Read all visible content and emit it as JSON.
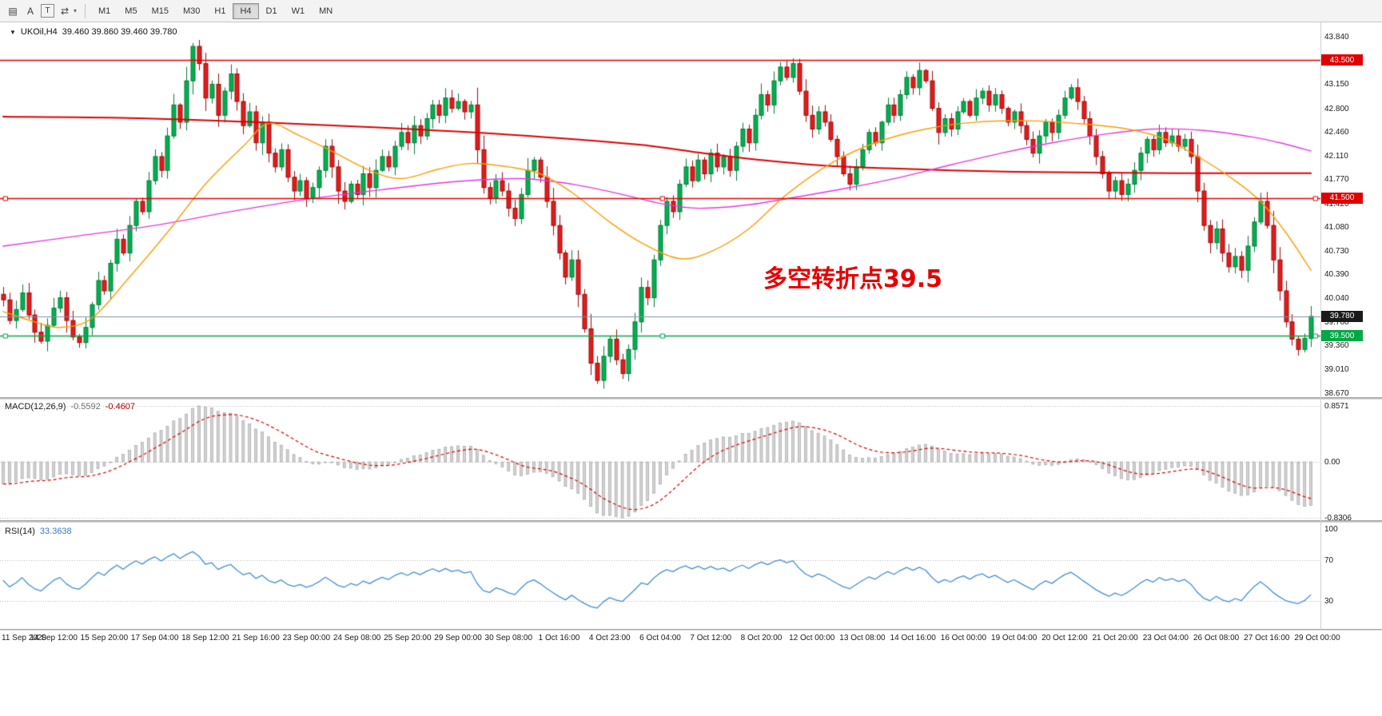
{
  "toolbar": {
    "tools": [
      {
        "name": "chart-layout",
        "glyph": "▤",
        "boxed": false,
        "caret": false
      },
      {
        "name": "text-annotation",
        "glyph": "A",
        "boxed": false,
        "caret": false
      },
      {
        "name": "text-label",
        "glyph": "T",
        "boxed": true,
        "caret": false
      },
      {
        "name": "draw-tools",
        "glyph": "⇄",
        "boxed": false,
        "caret": true
      }
    ],
    "timeframes": [
      "M1",
      "M5",
      "M15",
      "M30",
      "H1",
      "H4",
      "D1",
      "W1",
      "MN"
    ],
    "active_timeframe": "H4"
  },
  "main_chart": {
    "symbol_period": "UKOil,H4",
    "ohlc_text": "39.460 39.860 39.460 39.780",
    "annotation": {
      "text": "多空转折点39.5",
      "color": "#e60000"
    },
    "up_color": "#00b050",
    "up_border": "#007c34",
    "down_color": "#e41b1b",
    "down_border": "#9c0b0b",
    "y_ticks": [
      "43.840",
      "43.150",
      "42.800",
      "42.460",
      "42.110",
      "41.770",
      "41.420",
      "41.080",
      "40.730",
      "40.390",
      "40.040",
      "39.700",
      "39.360",
      "39.010",
      "38.670"
    ],
    "levels": [
      {
        "name": "resistance-line-43500",
        "label": "43.500",
        "price": 43.5,
        "line_color": "#e00000",
        "box_color": "#e00000",
        "handles": false
      },
      {
        "name": "hline-41500",
        "label": "41.500",
        "price": 41.5,
        "line_color": "#e00000",
        "box_color": "#e00000",
        "handles": true
      },
      {
        "name": "support-line-39500",
        "label": "39.500",
        "price": 39.5,
        "line_color": "#00a846",
        "box_color": "#00a846",
        "handles": true
      },
      {
        "name": "bid-price-line",
        "label": "39.780",
        "price": 39.78,
        "line_color": "#7a93a8",
        "box_color": "#1a1a1a",
        "handles": false
      }
    ],
    "moving_averages": [
      {
        "name": "ma-slow",
        "color": "#dd0000",
        "width": 2,
        "anchors": [
          [
            0,
            42.68
          ],
          [
            20,
            42.66
          ],
          [
            40,
            42.6
          ],
          [
            60,
            42.52
          ],
          [
            80,
            42.42
          ],
          [
            100,
            42.28
          ],
          [
            110,
            42.16
          ],
          [
            120,
            42.05
          ],
          [
            130,
            41.97
          ],
          [
            140,
            41.93
          ],
          [
            150,
            41.9
          ],
          [
            160,
            41.88
          ],
          [
            170,
            41.87
          ],
          [
            185,
            41.86
          ],
          [
            207,
            41.86
          ]
        ]
      },
      {
        "name": "ma-medium",
        "color": "#e437e4",
        "width": 1.4,
        "anchors": [
          [
            0,
            40.8
          ],
          [
            12,
            40.95
          ],
          [
            24,
            41.1
          ],
          [
            36,
            41.3
          ],
          [
            48,
            41.48
          ],
          [
            60,
            41.62
          ],
          [
            72,
            41.74
          ],
          [
            82,
            41.78
          ],
          [
            90,
            41.7
          ],
          [
            98,
            41.55
          ],
          [
            104,
            41.42
          ],
          [
            110,
            41.35
          ],
          [
            118,
            41.4
          ],
          [
            126,
            41.52
          ],
          [
            134,
            41.65
          ],
          [
            142,
            41.8
          ],
          [
            150,
            41.98
          ],
          [
            158,
            42.15
          ],
          [
            166,
            42.3
          ],
          [
            174,
            42.42
          ],
          [
            182,
            42.5
          ],
          [
            190,
            42.48
          ],
          [
            198,
            42.38
          ],
          [
            203,
            42.28
          ],
          [
            207,
            42.18
          ]
        ]
      },
      {
        "name": "ma-fast",
        "color": "#ff9c00",
        "width": 1.4,
        "anchors": [
          [
            0,
            39.85
          ],
          [
            5,
            39.7
          ],
          [
            9,
            39.62
          ],
          [
            14,
            39.75
          ],
          [
            20,
            40.35
          ],
          [
            26,
            41.0
          ],
          [
            32,
            41.7
          ],
          [
            38,
            42.25
          ],
          [
            42,
            42.58
          ],
          [
            47,
            42.4
          ],
          [
            52,
            42.18
          ],
          [
            58,
            41.9
          ],
          [
            63,
            41.78
          ],
          [
            69,
            41.92
          ],
          [
            74,
            42.0
          ],
          [
            80,
            41.95
          ],
          [
            85,
            41.85
          ],
          [
            90,
            41.58
          ],
          [
            96,
            41.15
          ],
          [
            101,
            40.85
          ],
          [
            107,
            40.62
          ],
          [
            112,
            40.72
          ],
          [
            118,
            41.05
          ],
          [
            124,
            41.55
          ],
          [
            131,
            42.0
          ],
          [
            138,
            42.3
          ],
          [
            146,
            42.5
          ],
          [
            154,
            42.6
          ],
          [
            162,
            42.62
          ],
          [
            170,
            42.58
          ],
          [
            178,
            42.5
          ],
          [
            184,
            42.35
          ],
          [
            190,
            42.05
          ],
          [
            195,
            41.75
          ],
          [
            199,
            41.45
          ],
          [
            203,
            41.0
          ],
          [
            207,
            40.45
          ]
        ]
      }
    ]
  },
  "macd_panel": {
    "label": "MACD(12,26,9)",
    "value_main": "-0.5592",
    "value_signal": "-0.4607",
    "y_ticks": [
      "0.8571",
      "0.00",
      "-0.8306"
    ],
    "histogram_fill": "#d2d2d2",
    "histogram_stroke": "#9b9b9b",
    "signal_color": "#dd0000"
  },
  "rsi_panel": {
    "label": "RSI(14)",
    "value": "33.3638",
    "y_ticks": [
      "100",
      "70",
      "30"
    ],
    "levels": [
      70,
      30
    ],
    "line_color": "#3f8fd6"
  },
  "x_axis": {
    "labels": [
      "11 Sep 2020",
      "14 Sep 12:00",
      "15 Sep 20:00",
      "17 Sep 04:00",
      "18 Sep 12:00",
      "21 Sep 16:00",
      "23 Sep 00:00",
      "24 Sep 08:00",
      "25 Sep 20:00",
      "29 Sep 00:00",
      "30 Sep 08:00",
      "1 Oct 16:00",
      "4 Oct 23:00",
      "6 Oct 04:00",
      "7 Oct 12:00",
      "8 Oct 20:00",
      "12 Oct 00:00",
      "13 Oct 08:00",
      "14 Oct 16:00",
      "16 Oct 00:00",
      "19 Oct 04:00",
      "20 Oct 12:00",
      "21 Oct 20:00",
      "23 Oct 04:00",
      "26 Oct 08:00",
      "27 Oct 16:00",
      "29 Oct 00:00"
    ]
  },
  "chart_data": {
    "type": "candlestick",
    "symbol": "UKOil",
    "period": "H4",
    "current_ohlc": {
      "open": 39.46,
      "high": 39.86,
      "low": 39.46,
      "close": 39.78
    },
    "price_range": [
      38.665,
      43.84
    ],
    "first_open": 40.1,
    "closes": [
      40.02,
      39.72,
      39.88,
      40.12,
      39.8,
      39.55,
      39.42,
      39.65,
      39.9,
      40.05,
      39.72,
      39.48,
      39.4,
      39.62,
      39.95,
      40.3,
      40.15,
      40.55,
      40.9,
      40.7,
      41.1,
      41.45,
      41.3,
      41.75,
      42.1,
      41.9,
      42.4,
      42.85,
      42.6,
      43.2,
      43.7,
      43.45,
      42.95,
      43.15,
      42.7,
      43.05,
      43.3,
      42.9,
      42.55,
      42.75,
      42.3,
      42.6,
      42.15,
      41.95,
      42.2,
      41.8,
      41.6,
      41.75,
      41.5,
      41.65,
      41.9,
      42.25,
      41.95,
      41.6,
      41.45,
      41.7,
      41.55,
      41.85,
      41.65,
      41.9,
      42.1,
      41.95,
      42.25,
      42.45,
      42.3,
      42.55,
      42.4,
      42.65,
      42.85,
      42.7,
      42.95,
      42.8,
      42.9,
      42.75,
      42.85,
      42.2,
      41.65,
      41.5,
      41.75,
      41.6,
      41.35,
      41.2,
      41.55,
      41.9,
      42.05,
      41.8,
      41.45,
      41.1,
      40.7,
      40.35,
      40.6,
      40.1,
      39.6,
      39.1,
      38.85,
      39.2,
      39.45,
      39.15,
      38.95,
      39.3,
      39.7,
      40.2,
      40.05,
      40.6,
      41.1,
      41.45,
      41.3,
      41.7,
      41.95,
      41.75,
      42.05,
      41.85,
      42.15,
      41.95,
      42.1,
      41.9,
      42.25,
      42.5,
      42.3,
      42.7,
      43.0,
      42.85,
      43.2,
      43.4,
      43.25,
      43.45,
      43.05,
      42.7,
      42.5,
      42.75,
      42.6,
      42.35,
      42.1,
      41.85,
      41.7,
      41.95,
      42.2,
      42.45,
      42.3,
      42.6,
      42.85,
      42.7,
      43.0,
      43.25,
      43.1,
      43.35,
      43.2,
      42.8,
      42.45,
      42.65,
      42.5,
      42.75,
      42.9,
      42.7,
      42.95,
      43.05,
      42.85,
      43.0,
      42.8,
      42.6,
      42.75,
      42.55,
      42.35,
      42.15,
      42.4,
      42.6,
      42.45,
      42.7,
      42.95,
      43.1,
      42.9,
      42.65,
      42.4,
      42.1,
      41.85,
      41.6,
      41.75,
      41.55,
      41.7,
      41.9,
      42.15,
      42.35,
      42.2,
      42.45,
      42.3,
      42.4,
      42.25,
      42.35,
      42.1,
      41.6,
      41.1,
      40.85,
      41.05,
      40.7,
      40.5,
      40.65,
      40.45,
      40.8,
      41.15,
      41.45,
      41.1,
      40.6,
      40.15,
      39.7,
      39.45,
      39.3,
      39.46,
      39.78
    ]
  }
}
